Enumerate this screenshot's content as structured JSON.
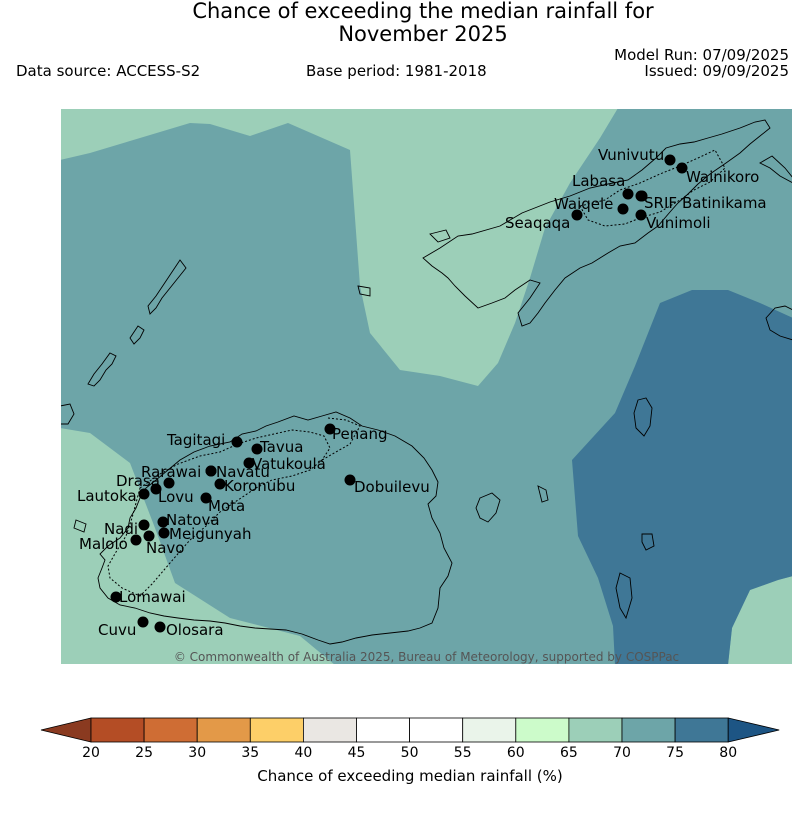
{
  "title": {
    "line1": "Chance of exceeding the median rainfall for",
    "line2": "November 2025"
  },
  "header": {
    "data_source": "Data source: ACCESS-S2",
    "base_period": "Base period: 1981-2018",
    "model_run": "Model Run: 07/09/2025",
    "issued": "Issued: 09/09/2025"
  },
  "copyright": "© Commonwealth of Australia 2025, Bureau of Meteorology, supported by COSPPac",
  "colorbar": {
    "label": "Chance of exceeding median rainfall (%)",
    "ticks": [
      "20",
      "25",
      "30",
      "35",
      "40",
      "45",
      "50",
      "55",
      "60",
      "65",
      "70",
      "75",
      "80"
    ],
    "colors": [
      "#b44d25",
      "#cf6d34",
      "#e39948",
      "#fdcf68",
      "#eae7e3",
      "#ffffff",
      "#ffffff",
      "#eaf4ea",
      "#ccfbca",
      "#9ccfb8",
      "#6da5a8",
      "#3f7796"
    ],
    "under_color": "#8a3a20",
    "over_color": "#1d5584"
  },
  "map_colors": {
    "class_65_70": "#9ccfb8",
    "class_70_75": "#6da5a8",
    "class_75_80": "#3f7796"
  },
  "stations": [
    {
      "name": "Vunivutu"
    },
    {
      "name": "Wainikoro"
    },
    {
      "name": "Labasa"
    },
    {
      "name": "SRIF"
    },
    {
      "name": "Batinikama"
    },
    {
      "name": "Waiqele"
    },
    {
      "name": "Seaqaqa"
    },
    {
      "name": "Vunimoli"
    },
    {
      "name": "Tagitagi"
    },
    {
      "name": "Tavua"
    },
    {
      "name": "Penang"
    },
    {
      "name": "Vatukoula"
    },
    {
      "name": "Rarawai"
    },
    {
      "name": "Navatu"
    },
    {
      "name": "Drasa"
    },
    {
      "name": "Koronubu"
    },
    {
      "name": "Dobuilevu"
    },
    {
      "name": "Lautoka"
    },
    {
      "name": "Lovu"
    },
    {
      "name": "Mota"
    },
    {
      "name": "Nadi"
    },
    {
      "name": "Natova"
    },
    {
      "name": "Meigunyah"
    },
    {
      "name": "Malolo"
    },
    {
      "name": "Navo"
    },
    {
      "name": "Lomawai"
    },
    {
      "name": "Cuvu"
    },
    {
      "name": "Olosara"
    }
  ]
}
